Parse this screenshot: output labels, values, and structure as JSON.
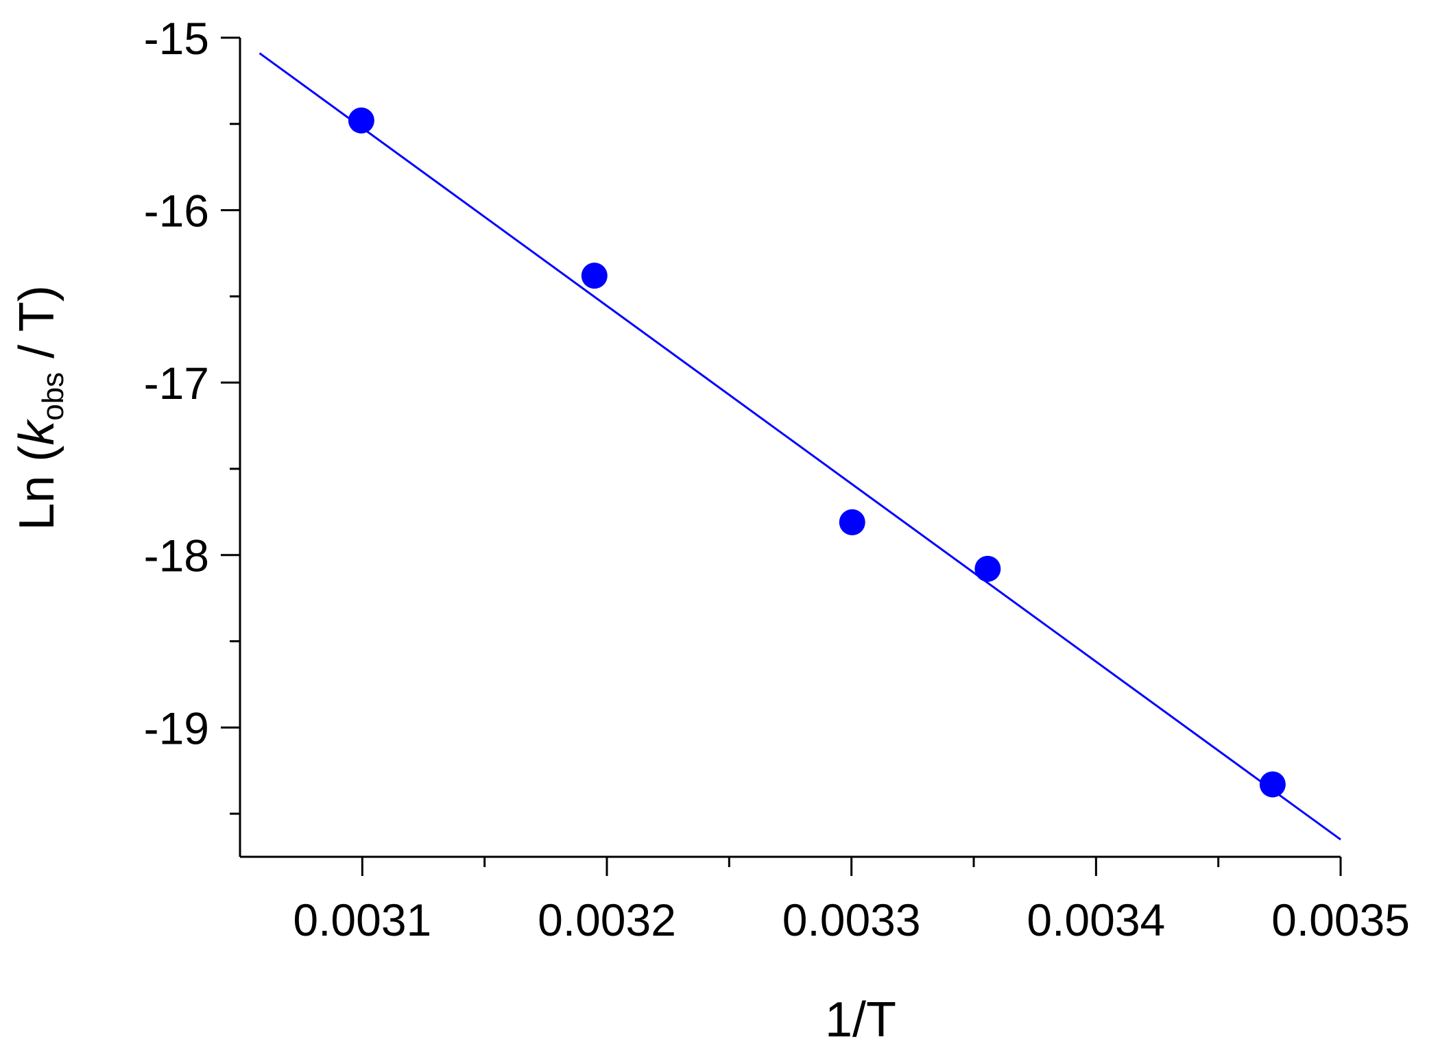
{
  "chart_data": {
    "type": "scatter",
    "title": "",
    "xlabel": "1/T",
    "ylabel": {
      "prefix": "Ln (",
      "italic": "k",
      "subscript": "obs",
      "suffix": " / T)"
    },
    "xlim": [
      0.00305,
      0.0035
    ],
    "ylim": [
      -19.75,
      -15.0
    ],
    "x_ticks": [
      0.0031,
      0.0032,
      0.0033,
      0.0034,
      0.0035
    ],
    "x_tick_labels": [
      "0.0031",
      "0.0032",
      "0.0033",
      "0.0034",
      "0.0035"
    ],
    "y_ticks": [
      -15,
      -16,
      -17,
      -18,
      -19
    ],
    "y_tick_labels": [
      "-15",
      "-16",
      "-17",
      "-18",
      "-19"
    ],
    "grid": false,
    "legend": "none",
    "series": [
      {
        "kind": "points",
        "color": "#0000ff",
        "x": [
          0.0030996,
          0.0031949,
          0.0033003,
          0.0033557,
          0.0034722
        ],
        "y": [
          -15.48,
          -16.38,
          -17.81,
          -18.08,
          -19.33
        ]
      },
      {
        "kind": "fit-line",
        "color": "#0000ff",
        "x": [
          0.003058,
          0.0035
        ],
        "y": [
          -15.09,
          -19.65
        ]
      }
    ]
  }
}
